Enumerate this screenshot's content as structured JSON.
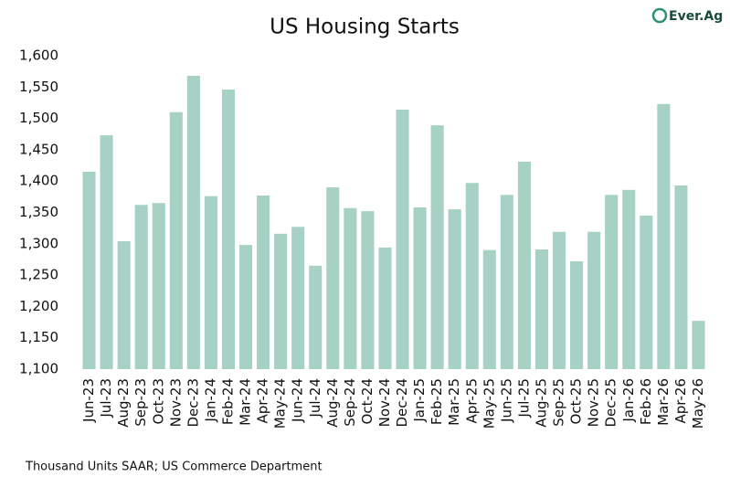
{
  "brand": "Ever.Ag",
  "chart_data": {
    "type": "bar",
    "title": "US Housing Starts",
    "note": "Thousand Units SAAR; US Commerce Department",
    "categories": [
      "Jun-23",
      "Jul-23",
      "Aug-23",
      "Sep-23",
      "Oct-23",
      "Nov-23",
      "Dec-23",
      "Jan-24",
      "Feb-24",
      "Mar-24",
      "Apr-24",
      "May-24",
      "Jun-24",
      "Jul-24",
      "Aug-24",
      "Sep-24",
      "Oct-24",
      "Nov-24",
      "Dec-24",
      "Jan-25",
      "Feb-25",
      "Mar-25",
      "Apr-25",
      "May-25",
      "Jun-25",
      "Jul-25",
      "Aug-25",
      "Sep-25",
      "Oct-25",
      "Nov-25",
      "Dec-25",
      "Jan-26",
      "Feb-26",
      "Mar-26",
      "Apr-26",
      "May-26"
    ],
    "values": [
      1415,
      1473,
      1304,
      1362,
      1365,
      1510,
      1568,
      1376,
      1546,
      1298,
      1377,
      1316,
      1327,
      1265,
      1390,
      1357,
      1352,
      1294,
      1514,
      1358,
      1489,
      1355,
      1397,
      1290,
      1378,
      1431,
      1291,
      1319,
      1272,
      1319,
      1378,
      1386,
      1345,
      1523,
      1393,
      1177
    ],
    "color": "#a6d1c4",
    "ylim": [
      1100,
      1600
    ],
    "yticks": [
      {
        "value": 1100,
        "label": "1,100"
      },
      {
        "value": 1150,
        "label": "1,150"
      },
      {
        "value": 1200,
        "label": "1,200"
      },
      {
        "value": 1250,
        "label": "1,250"
      },
      {
        "value": 1300,
        "label": "1,300"
      },
      {
        "value": 1350,
        "label": "1,350"
      },
      {
        "value": 1400,
        "label": "1,400"
      },
      {
        "value": 1450,
        "label": "1,450"
      },
      {
        "value": 1500,
        "label": "1,500"
      },
      {
        "value": 1550,
        "label": "1,550"
      },
      {
        "value": 1600,
        "label": "1,600"
      }
    ],
    "grid": true
  }
}
